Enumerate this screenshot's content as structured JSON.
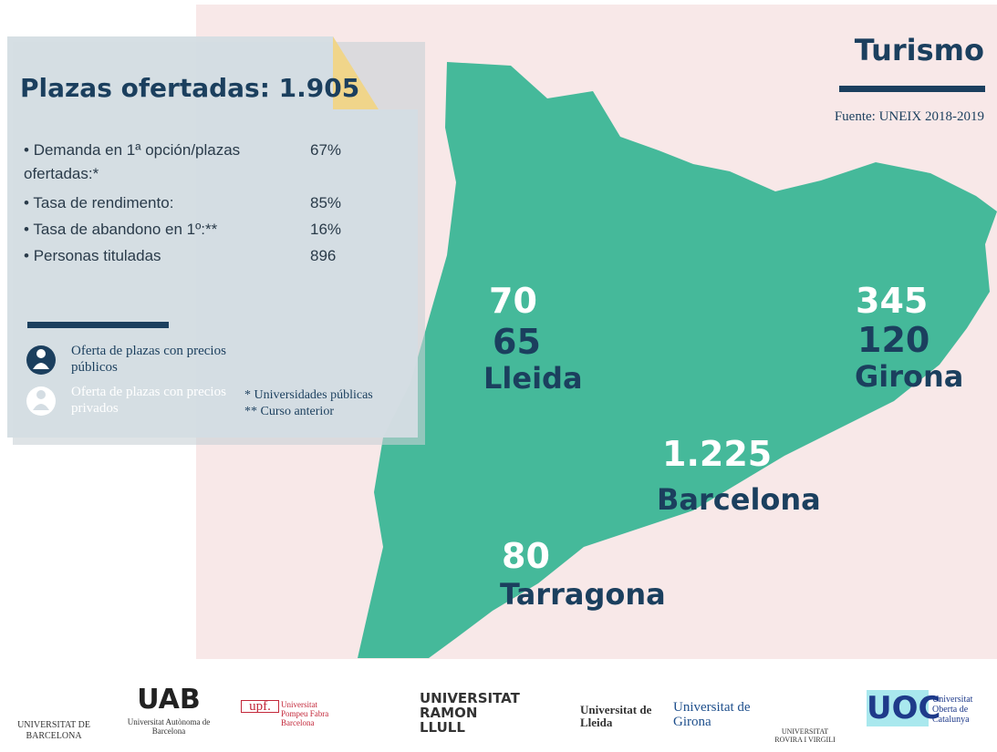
{
  "header": {
    "title": "Turismo",
    "source": "Fuente: UNEIX 2018-2019"
  },
  "panel": {
    "title": "Plazas ofertadas: 1.905",
    "stats": [
      {
        "label": "Demanda en 1ª opción/plazas ofertadas:*",
        "value": "67%"
      },
      {
        "label": "Tasa de rendimento:",
        "value": "85%"
      },
      {
        "label": "Tasa de abandono en 1º:**",
        "value": "16%"
      },
      {
        "label": "Personas tituladas",
        "value": "896"
      }
    ],
    "legend": [
      "Oferta de plazas con precios públicos",
      "Oferta de plazas con precios privados"
    ],
    "notes": [
      "* Universidades públicas",
      "** Curso anterior"
    ]
  },
  "regions": [
    {
      "name": "Lleida",
      "values": [
        "70",
        "65"
      ]
    },
    {
      "name": "Girona",
      "values": [
        "345",
        "120"
      ]
    },
    {
      "name": "Barcelona",
      "values": [
        "1.225"
      ]
    },
    {
      "name": "Tarragona",
      "values": [
        "80"
      ]
    }
  ],
  "logos": [
    "UNIVERSITAT DE BARCELONA",
    "UAB",
    "Universitat Autònoma de Barcelona",
    "upf.",
    "Universitat Pompeu Fabra Barcelona",
    "UNIVERSITAT RAMON LLULL",
    "Universitat de Lleida",
    "Universitat de Girona",
    "UNIVERSITAT ROVIRA I VIRGILI",
    "UOC",
    "Universitat Oberta de Catalunya"
  ]
}
